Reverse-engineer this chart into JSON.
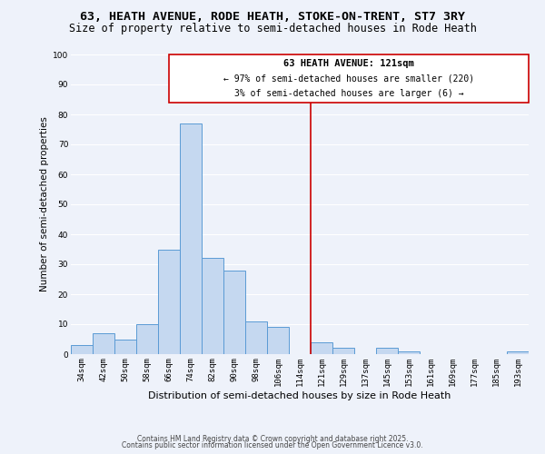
{
  "title": "63, HEATH AVENUE, RODE HEATH, STOKE-ON-TRENT, ST7 3RY",
  "subtitle": "Size of property relative to semi-detached houses in Rode Heath",
  "xlabel": "Distribution of semi-detached houses by size in Rode Heath",
  "ylabel": "Number of semi-detached properties",
  "categories": [
    "34sqm",
    "42sqm",
    "50sqm",
    "58sqm",
    "66sqm",
    "74sqm",
    "82sqm",
    "90sqm",
    "98sqm",
    "106sqm",
    "114sqm",
    "121sqm",
    "129sqm",
    "137sqm",
    "145sqm",
    "153sqm",
    "161sqm",
    "169sqm",
    "177sqm",
    "185sqm",
    "193sqm"
  ],
  "values": [
    3,
    7,
    5,
    10,
    35,
    77,
    32,
    28,
    11,
    9,
    0,
    4,
    2,
    0,
    2,
    1,
    0,
    0,
    0,
    0,
    1
  ],
  "bar_color": "#c5d8f0",
  "bar_edge_color": "#5b9bd5",
  "background_color": "#eef2fa",
  "grid_color": "#ffffff",
  "vline_color": "#cc0000",
  "annotation_title": "63 HEATH AVENUE: 121sqm",
  "annotation_line1": "← 97% of semi-detached houses are smaller (220)",
  "annotation_line2": "3% of semi-detached houses are larger (6) →",
  "annotation_box_color": "#cc0000",
  "ylim": [
    0,
    100
  ],
  "footer1": "Contains HM Land Registry data © Crown copyright and database right 2025.",
  "footer2": "Contains public sector information licensed under the Open Government Licence v3.0.",
  "title_fontsize": 9.5,
  "subtitle_fontsize": 8.5,
  "xlabel_fontsize": 8,
  "ylabel_fontsize": 7.5,
  "tick_fontsize": 6.5,
  "annotation_title_fontsize": 7.5,
  "annotation_line_fontsize": 7,
  "footer_fontsize": 5.5
}
